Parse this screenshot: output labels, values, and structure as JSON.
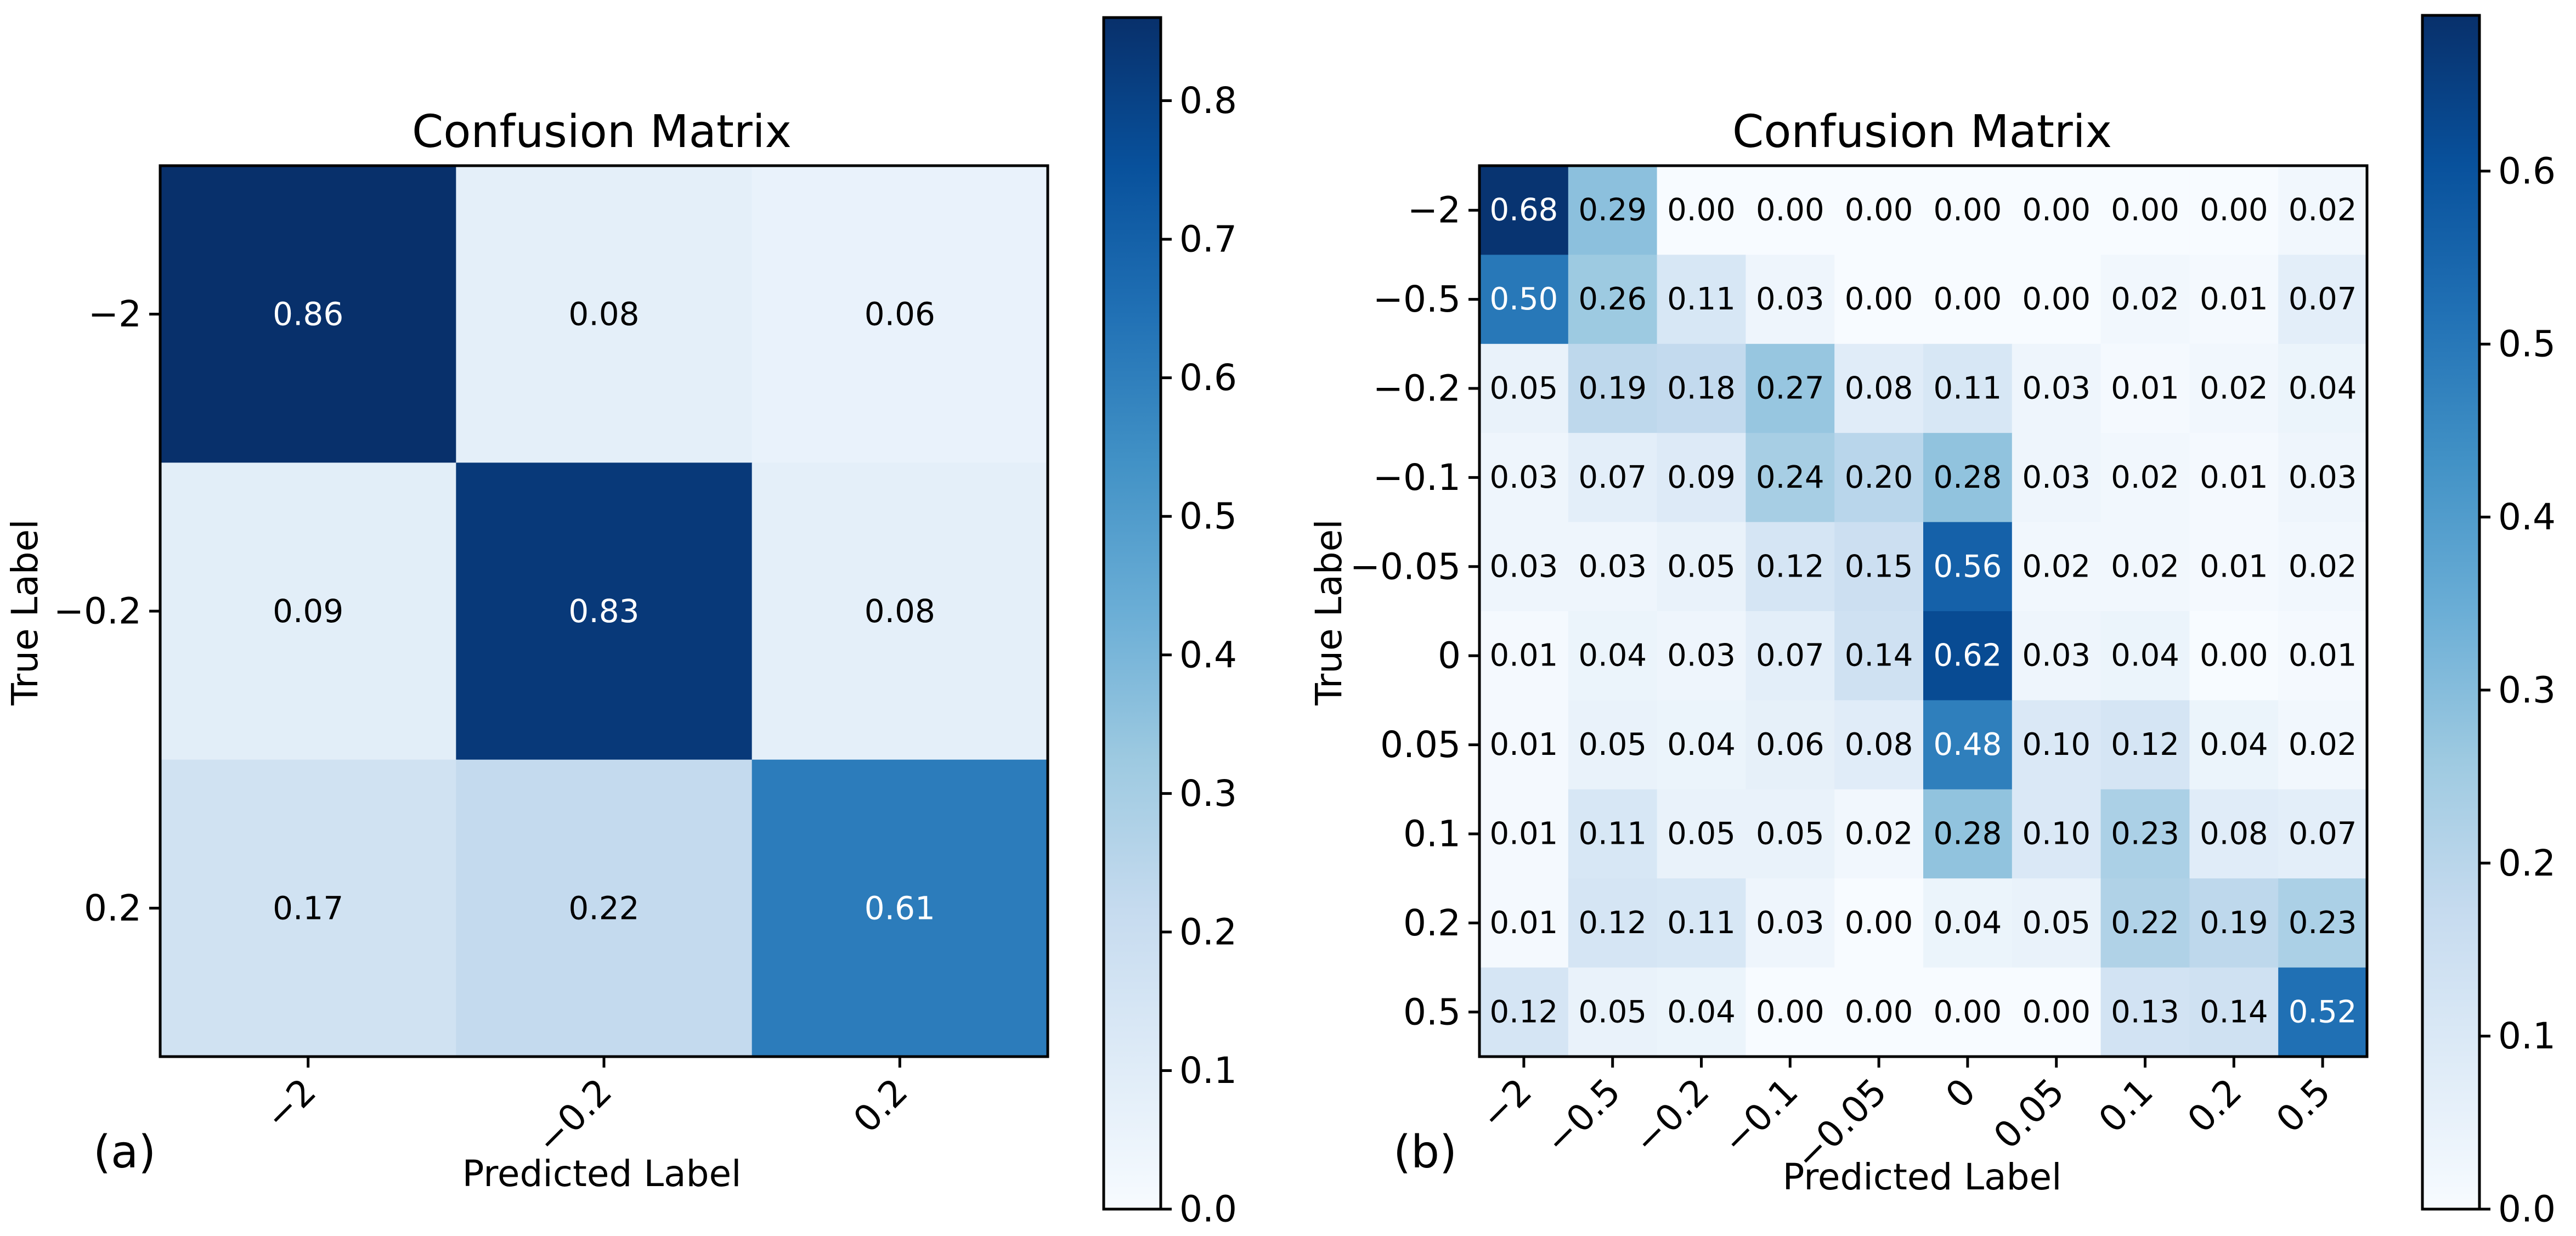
{
  "colormap": {
    "name": "Blues",
    "stops": [
      "#f7fbff",
      "#deebf7",
      "#c6dbef",
      "#9ecae1",
      "#6baed6",
      "#4292c6",
      "#2171b5",
      "#08519c",
      "#08306b"
    ],
    "light_text_color": "#ffffff",
    "dark_text_color": "#000000"
  },
  "chart_data": [
    {
      "type": "heatmap",
      "panel_label": "(a)",
      "title": "Confusion Matrix",
      "xlabel": "Predicted Label",
      "ylabel": "True Label",
      "x_tick_labels": [
        "−2",
        "−0.2",
        "0.2"
      ],
      "y_tick_labels": [
        "−2",
        "−0.2",
        "0.2"
      ],
      "cell_labels": [
        [
          "0.86",
          "0.08",
          "0.06"
        ],
        [
          "0.09",
          "0.83",
          "0.08"
        ],
        [
          "0.17",
          "0.22",
          "0.61"
        ]
      ],
      "values": [
        [
          0.86,
          0.08,
          0.06
        ],
        [
          0.09,
          0.83,
          0.08
        ],
        [
          0.17,
          0.22,
          0.61
        ]
      ],
      "color_range": [
        0,
        0.86
      ],
      "colorbar_ticks": [
        0.0,
        0.1,
        0.2,
        0.3,
        0.4,
        0.5,
        0.6,
        0.7,
        0.8
      ],
      "colorbar_tick_labels": [
        "0.0",
        "0.1",
        "0.2",
        "0.3",
        "0.4",
        "0.5",
        "0.6",
        "0.7",
        "0.8"
      ]
    },
    {
      "type": "heatmap",
      "panel_label": "(b)",
      "title": "Confusion Matrix",
      "xlabel": "Predicted Label",
      "ylabel": "True Label",
      "x_tick_labels": [
        "−2",
        "−0.5",
        "−0.2",
        "−0.1",
        "−0.05",
        "0",
        "0.05",
        "0.1",
        "0.2",
        "0.5"
      ],
      "y_tick_labels": [
        "−2",
        "−0.5",
        "−0.2",
        "−0.1",
        "−0.05",
        "0",
        "0.05",
        "0.1",
        "0.2",
        "0.5"
      ],
      "cell_labels": [
        [
          "0.68",
          "0.29",
          "0.00",
          "0.00",
          "0.00",
          "0.00",
          "0.00",
          "0.00",
          "0.00",
          "0.02"
        ],
        [
          "0.50",
          "0.26",
          "0.11",
          "0.03",
          "0.00",
          "0.00",
          "0.00",
          "0.02",
          "0.01",
          "0.07"
        ],
        [
          "0.05",
          "0.19",
          "0.18",
          "0.27",
          "0.08",
          "0.11",
          "0.03",
          "0.01",
          "0.02",
          "0.04"
        ],
        [
          "0.03",
          "0.07",
          "0.09",
          "0.24",
          "0.20",
          "0.28",
          "0.03",
          "0.02",
          "0.01",
          "0.03"
        ],
        [
          "0.03",
          "0.03",
          "0.05",
          "0.12",
          "0.15",
          "0.56",
          "0.02",
          "0.02",
          "0.01",
          "0.02"
        ],
        [
          "0.01",
          "0.04",
          "0.03",
          "0.07",
          "0.14",
          "0.62",
          "0.03",
          "0.04",
          "0.00",
          "0.01"
        ],
        [
          "0.01",
          "0.05",
          "0.04",
          "0.06",
          "0.08",
          "0.48",
          "0.10",
          "0.12",
          "0.04",
          "0.02"
        ],
        [
          "0.01",
          "0.11",
          "0.05",
          "0.05",
          "0.02",
          "0.28",
          "0.10",
          "0.23",
          "0.08",
          "0.07"
        ],
        [
          "0.01",
          "0.12",
          "0.11",
          "0.03",
          "0.00",
          "0.04",
          "0.05",
          "0.22",
          "0.19",
          "0.23"
        ],
        [
          "0.12",
          "0.05",
          "0.04",
          "0.00",
          "0.00",
          "0.00",
          "0.00",
          "0.13",
          "0.14",
          "0.52"
        ]
      ],
      "values": [
        [
          0.68,
          0.29,
          0.0,
          0.0,
          0.0,
          0.0,
          0.0,
          0.0,
          0.0,
          0.02
        ],
        [
          0.5,
          0.26,
          0.11,
          0.03,
          0.0,
          0.0,
          0.0,
          0.02,
          0.01,
          0.07
        ],
        [
          0.05,
          0.19,
          0.18,
          0.27,
          0.08,
          0.11,
          0.03,
          0.01,
          0.02,
          0.04
        ],
        [
          0.03,
          0.07,
          0.09,
          0.24,
          0.2,
          0.28,
          0.03,
          0.02,
          0.01,
          0.03
        ],
        [
          0.03,
          0.03,
          0.05,
          0.12,
          0.15,
          0.56,
          0.02,
          0.02,
          0.01,
          0.02
        ],
        [
          0.01,
          0.04,
          0.03,
          0.07,
          0.14,
          0.62,
          0.03,
          0.04,
          0.0,
          0.01
        ],
        [
          0.01,
          0.05,
          0.04,
          0.06,
          0.08,
          0.48,
          0.1,
          0.12,
          0.04,
          0.02
        ],
        [
          0.01,
          0.11,
          0.05,
          0.05,
          0.02,
          0.28,
          0.1,
          0.23,
          0.08,
          0.07
        ],
        [
          0.01,
          0.12,
          0.11,
          0.03,
          0.0,
          0.04,
          0.05,
          0.22,
          0.19,
          0.23
        ],
        [
          0.12,
          0.05,
          0.04,
          0.0,
          0.0,
          0.0,
          0.0,
          0.13,
          0.14,
          0.52
        ]
      ],
      "color_range": [
        0,
        0.69
      ],
      "colorbar_ticks": [
        0.0,
        0.1,
        0.2,
        0.3,
        0.4,
        0.5,
        0.6
      ],
      "colorbar_tick_labels": [
        "0.0",
        "0.1",
        "0.2",
        "0.3",
        "0.4",
        "0.5",
        "0.6"
      ]
    }
  ]
}
